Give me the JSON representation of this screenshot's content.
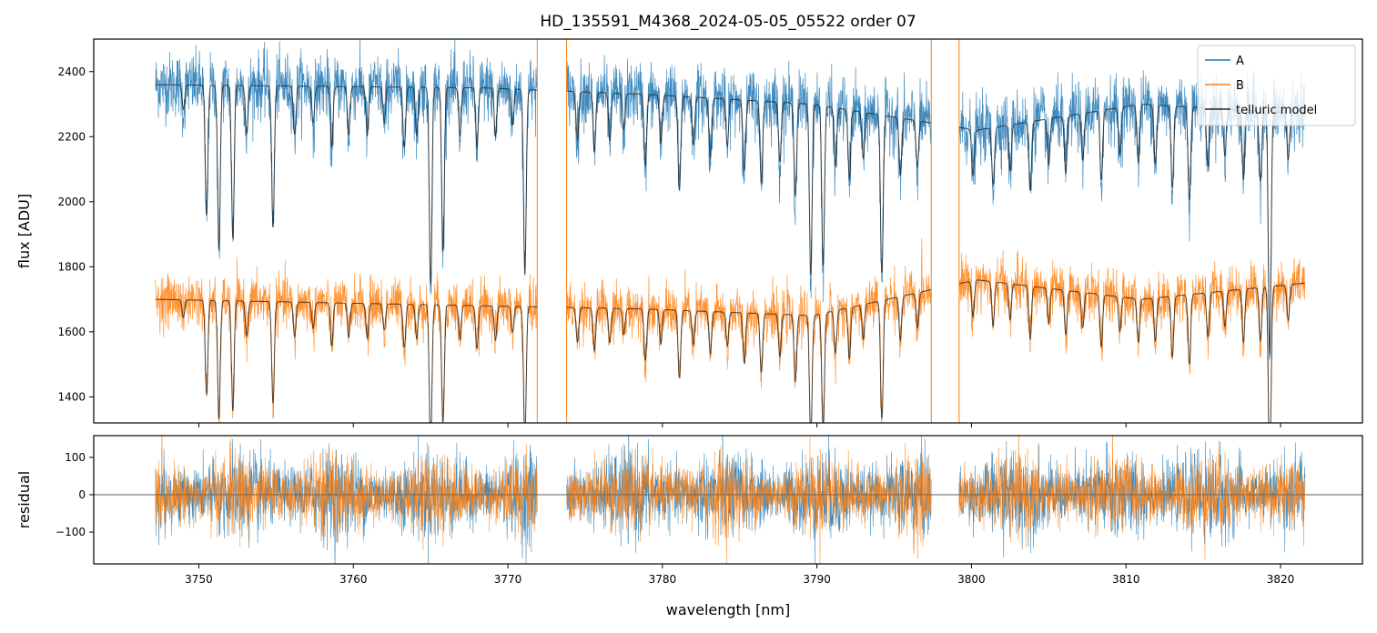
{
  "title": "HD_135591_M4368_2024-05-05_05522  order 07",
  "colors": {
    "A": "#1f77b4",
    "B": "#ff7f0e",
    "model": "#222222",
    "zero": "#555555"
  },
  "chart_data": [
    {
      "type": "line",
      "panel": "flux",
      "title": "HD_135591_M4368_2024-05-05_05522  order 07",
      "xlabel": "",
      "ylabel": "flux [ADU]",
      "xlim": [
        3743.2,
        3825.3
      ],
      "ylim": [
        1320,
        2500
      ],
      "x_ticks": [
        3750,
        3760,
        3770,
        3780,
        3790,
        3800,
        3810,
        3820
      ],
      "x_tick_labels": [
        "",
        "",
        "",
        "",
        "",
        "",
        "",
        ""
      ],
      "y_ticks": [
        1400,
        1600,
        1800,
        2000,
        2200,
        2400
      ],
      "y_tick_labels": [
        "1400",
        "1600",
        "1800",
        "2000",
        "2200",
        "2400"
      ],
      "segments": [
        [
          3747.2,
          3771.9
        ],
        [
          3773.8,
          3797.4
        ],
        [
          3799.2,
          3821.6
        ]
      ],
      "gap_lines": [
        3771.9,
        3773.8,
        3797.4,
        3799.2
      ],
      "series": [
        {
          "name": "A",
          "continuum": [
            2360,
            2355,
            2350,
            2330,
            2300,
            2220,
            2300,
            2270
          ],
          "scatter": 90
        },
        {
          "name": "B",
          "continuum": [
            1700,
            1690,
            1680,
            1670,
            1650,
            1760,
            1700,
            1750
          ],
          "scatter": 70
        },
        {
          "name": "telluric model"
        }
      ],
      "telluric_lines": [
        3749.0,
        3750.5,
        3751.3,
        3752.2,
        3753.1,
        3754.8,
        3756.2,
        3757.4,
        3758.6,
        3759.7,
        3760.9,
        3762.0,
        3763.3,
        3764.1,
        3765.0,
        3765.8,
        3766.9,
        3768.0,
        3769.2,
        3770.3,
        3771.1,
        3774.5,
        3775.6,
        3776.6,
        3777.5,
        3778.9,
        3779.9,
        3781.1,
        3782.0,
        3783.1,
        3784.2,
        3785.3,
        3786.4,
        3787.6,
        3788.6,
        3789.6,
        3790.4,
        3791.2,
        3792.1,
        3793.0,
        3794.2,
        3795.4,
        3796.5,
        3800.1,
        3801.4,
        3802.5,
        3803.8,
        3805.0,
        3806.1,
        3807.2,
        3808.4,
        3809.6,
        3810.8,
        3811.9,
        3813.0,
        3814.1,
        3815.3,
        3816.4,
        3817.6,
        3818.7,
        3819.3,
        3820.5
      ],
      "telluric_depths": [
        0.02,
        0.11,
        0.14,
        0.13,
        0.04,
        0.12,
        0.04,
        0.03,
        0.05,
        0.04,
        0.04,
        0.03,
        0.05,
        0.04,
        0.17,
        0.14,
        0.04,
        0.05,
        0.04,
        0.03,
        0.16,
        0.04,
        0.05,
        0.04,
        0.03,
        0.06,
        0.04,
        0.08,
        0.04,
        0.05,
        0.04,
        0.06,
        0.07,
        0.05,
        0.08,
        0.15,
        0.14,
        0.05,
        0.06,
        0.04,
        0.14,
        0.05,
        0.04,
        0.04,
        0.05,
        0.04,
        0.06,
        0.04,
        0.05,
        0.04,
        0.06,
        0.04,
        0.05,
        0.05,
        0.07,
        0.08,
        0.05,
        0.04,
        0.06,
        0.06,
        0.22,
        0.04
      ],
      "legend": [
        "A",
        "B",
        "telluric model"
      ],
      "legend_position": "top-right"
    },
    {
      "type": "line",
      "panel": "residual",
      "xlabel": "wavelength [nm]",
      "ylabel": "residual",
      "xlim": [
        3743.2,
        3825.3
      ],
      "ylim": [
        -185,
        158
      ],
      "x_ticks": [
        3750,
        3760,
        3770,
        3780,
        3790,
        3800,
        3810,
        3820
      ],
      "x_tick_labels": [
        "3750",
        "3760",
        "3770",
        "3780",
        "3790",
        "3800",
        "3810",
        "3820"
      ],
      "y_ticks": [
        -100,
        0,
        100
      ],
      "y_tick_labels": [
        "−100",
        "0",
        "100"
      ],
      "segments": [
        [
          3747.2,
          3771.9
        ],
        [
          3773.8,
          3797.4
        ],
        [
          3799.2,
          3821.6
        ]
      ],
      "series": [
        {
          "name": "A",
          "scatter": 55
        },
        {
          "name": "B",
          "scatter": 50
        }
      ],
      "zero_line": 0
    }
  ]
}
